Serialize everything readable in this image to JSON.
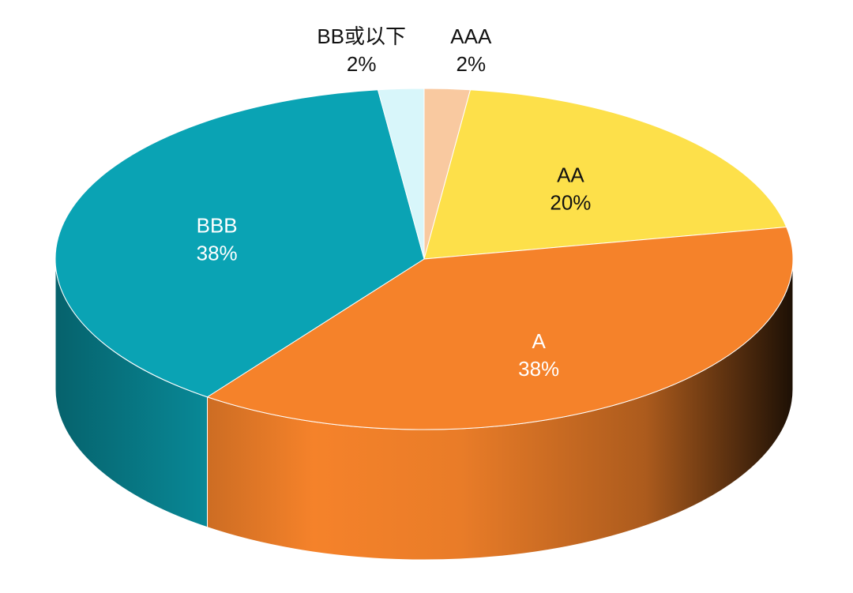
{
  "chart_data": {
    "type": "pie3d",
    "categories": [
      "AAA",
      "AA",
      "A",
      "BBB",
      "BB或以下"
    ],
    "values": [
      2,
      20,
      38,
      38,
      2
    ],
    "value_labels": [
      "2%",
      "20%",
      "38%",
      "38%",
      "2%"
    ],
    "colors": [
      "#f9c9a0",
      "#fde04a",
      "#f5822a",
      "#0aa3b4",
      "#d8f6fa"
    ]
  }
}
